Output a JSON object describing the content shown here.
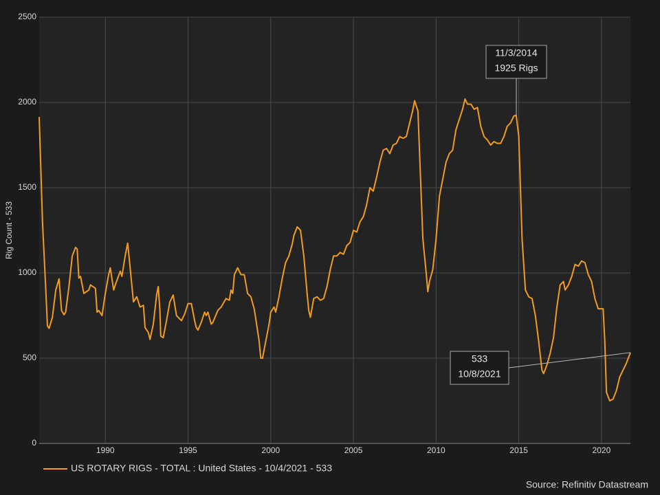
{
  "chart_data": {
    "type": "line",
    "y_label": "Rig Count - 533",
    "source": "Source: Refinitiv Datastream",
    "annotations": [
      [
        "11/3/2014",
        "1925 Rigs"
      ],
      [
        "533",
        "10/8/2021"
      ]
    ],
    "xlim": [
      1986.0,
      2021.75
    ],
    "xticks": [
      1990,
      1995,
      2000,
      2005,
      2010,
      2015,
      2020
    ],
    "ylim": [
      0,
      2500
    ],
    "yticks": [
      0,
      500,
      1000,
      1500,
      2000,
      2500
    ],
    "grid": true,
    "x": [
      1986.0,
      1986.2,
      1986.4,
      1986.5,
      1986.6,
      1986.8,
      1987.0,
      1987.2,
      1987.35,
      1987.5,
      1987.6,
      1987.8,
      1988.0,
      1988.2,
      1988.3,
      1988.4,
      1988.5,
      1988.7,
      1989.0,
      1989.1,
      1989.4,
      1989.5,
      1989.6,
      1989.8,
      1990.0,
      1990.2,
      1990.3,
      1990.5,
      1990.6,
      1990.9,
      1991.0,
      1991.2,
      1991.35,
      1991.5,
      1991.7,
      1991.9,
      1992.1,
      1992.3,
      1992.4,
      1992.6,
      1992.7,
      1992.9,
      1993.1,
      1993.2,
      1993.3,
      1993.35,
      1993.5,
      1993.7,
      1993.9,
      1994.1,
      1994.3,
      1994.6,
      1994.8,
      1995.0,
      1995.2,
      1995.4,
      1995.5,
      1995.6,
      1995.8,
      1996.0,
      1996.1,
      1996.2,
      1996.4,
      1996.5,
      1996.8,
      1997.0,
      1997.3,
      1997.5,
      1997.6,
      1997.7,
      1997.8,
      1998.0,
      1998.2,
      1998.4,
      1998.6,
      1998.8,
      1999.0,
      1999.1,
      1999.3,
      1999.4,
      1999.5,
      1999.7,
      1999.9,
      2000.0,
      2000.2,
      2000.3,
      2000.5,
      2000.7,
      2000.9,
      2001.1,
      2001.3,
      2001.4,
      2001.6,
      2001.8,
      2002.0,
      2002.2,
      2002.3,
      2002.4,
      2002.6,
      2002.8,
      2003.0,
      2003.2,
      2003.4,
      2003.6,
      2003.8,
      2004.0,
      2004.2,
      2004.4,
      2004.6,
      2004.8,
      2005.0,
      2005.2,
      2005.4,
      2005.6,
      2005.8,
      2006.0,
      2006.2,
      2006.4,
      2006.6,
      2006.8,
      2007.0,
      2007.2,
      2007.4,
      2007.6,
      2007.8,
      2008.0,
      2008.2,
      2008.4,
      2008.6,
      2008.7,
      2008.8,
      2008.9,
      2009.0,
      2009.2,
      2009.4,
      2009.5,
      2009.6,
      2009.8,
      2010.0,
      2010.2,
      2010.4,
      2010.6,
      2010.8,
      2011.0,
      2011.2,
      2011.4,
      2011.6,
      2011.75,
      2011.9,
      2012.1,
      2012.3,
      2012.5,
      2012.7,
      2012.9,
      2013.1,
      2013.3,
      2013.5,
      2013.7,
      2013.9,
      2014.1,
      2014.3,
      2014.5,
      2014.7,
      2014.84,
      2015.0,
      2015.2,
      2015.4,
      2015.6,
      2015.8,
      2016.0,
      2016.2,
      2016.4,
      2016.5,
      2016.7,
      2016.9,
      2017.1,
      2017.3,
      2017.5,
      2017.7,
      2017.8,
      2018.0,
      2018.2,
      2018.4,
      2018.6,
      2018.8,
      2019.0,
      2019.2,
      2019.4,
      2019.6,
      2019.8,
      2020.1,
      2020.2,
      2020.3,
      2020.5,
      2020.7,
      2020.9,
      2021.1,
      2021.3,
      2021.5,
      2021.7,
      2021.75
    ],
    "series": [
      {
        "name": "US ROTARY RIGS - TOTAL : United States - 10/4/2021 - 533",
        "color": "#f39c1f",
        "values": [
          1915,
          1300,
          900,
          690,
          675,
          740,
          900,
          965,
          780,
          755,
          770,
          920,
          1100,
          1150,
          1140,
          970,
          980,
          880,
          900,
          930,
          910,
          770,
          780,
          750,
          880,
          990,
          1030,
          900,
          930,
          1010,
          980,
          1100,
          1175,
          1030,
          830,
          860,
          800,
          810,
          680,
          650,
          610,
          700,
          870,
          920,
          780,
          630,
          620,
          720,
          830,
          870,
          750,
          720,
          760,
          820,
          820,
          720,
          680,
          665,
          710,
          770,
          750,
          770,
          700,
          710,
          780,
          800,
          850,
          840,
          900,
          880,
          990,
          1030,
          990,
          990,
          880,
          860,
          790,
          730,
          600,
          500,
          500,
          600,
          700,
          770,
          800,
          770,
          860,
          970,
          1060,
          1100,
          1170,
          1220,
          1270,
          1250,
          1100,
          880,
          780,
          740,
          850,
          860,
          840,
          850,
          920,
          1020,
          1100,
          1100,
          1120,
          1110,
          1160,
          1180,
          1250,
          1240,
          1300,
          1330,
          1400,
          1500,
          1480,
          1560,
          1650,
          1720,
          1730,
          1700,
          1750,
          1760,
          1800,
          1790,
          1800,
          1880,
          1960,
          2010,
          1980,
          1950,
          1700,
          1200,
          1000,
          890,
          950,
          1020,
          1200,
          1450,
          1550,
          1650,
          1700,
          1720,
          1840,
          1900,
          1960,
          2020,
          1990,
          1990,
          1960,
          1970,
          1860,
          1800,
          1780,
          1750,
          1770,
          1760,
          1760,
          1800,
          1860,
          1880,
          1920,
          1925,
          1800,
          1200,
          900,
          860,
          850,
          750,
          600,
          430,
          410,
          460,
          530,
          620,
          800,
          930,
          950,
          900,
          930,
          980,
          1050,
          1040,
          1070,
          1060,
          990,
          950,
          850,
          790,
          790,
          600,
          300,
          250,
          260,
          310,
          390,
          430,
          470,
          520,
          533
        ]
      }
    ]
  }
}
